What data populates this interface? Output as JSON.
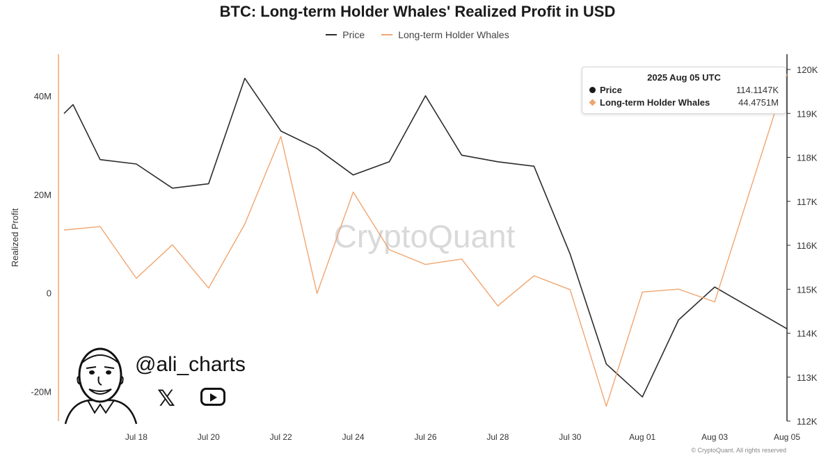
{
  "chart_data": {
    "type": "line",
    "title": "BTC: Long-term Holder Whales' Realized Profit in USD",
    "ylabel": "Realized Profit",
    "y2label": "",
    "xlabel": "",
    "watermark": "CryptoQuant",
    "x": [
      "2025-07-16",
      "2025-07-17",
      "2025-07-18",
      "2025-07-19",
      "2025-07-20",
      "2025-07-21",
      "2025-07-22",
      "2025-07-23",
      "2025-07-24",
      "2025-07-25",
      "2025-07-26",
      "2025-07-27",
      "2025-07-28",
      "2025-07-29",
      "2025-07-30",
      "2025-07-31",
      "2025-08-01",
      "2025-08-02",
      "2025-08-03",
      "2025-08-04",
      "2025-08-05"
    ],
    "x_tick_labels": [
      "Jul 18",
      "Jul 20",
      "Jul 22",
      "Jul 24",
      "Jul 26",
      "Jul 28",
      "Jul 30",
      "Aug 01",
      "Aug 03",
      "Aug 05"
    ],
    "x_tick_dates": [
      "2025-07-18",
      "2025-07-20",
      "2025-07-22",
      "2025-07-24",
      "2025-07-26",
      "2025-07-28",
      "2025-07-30",
      "2025-08-01",
      "2025-08-03",
      "2025-08-05"
    ],
    "left_axis": {
      "ticks": [
        40000000,
        20000000,
        0,
        -20000000
      ],
      "tick_labels": [
        "40M",
        "20M",
        "0",
        "-20M"
      ],
      "range": [
        -26000000,
        48500000
      ]
    },
    "right_axis": {
      "ticks": [
        120000,
        119000,
        118000,
        117000,
        116000,
        115000,
        114000,
        113000,
        112000
      ],
      "tick_labels": [
        "120K",
        "119K",
        "118K",
        "117K",
        "116K",
        "115K",
        "114K",
        "113K",
        "112K"
      ],
      "range": [
        112000,
        120000
      ]
    },
    "series": [
      {
        "name": "Price",
        "axis": "right",
        "color": "#2b2b2b",
        "points": [
          [
            "2025-07-16",
            119000
          ],
          [
            "2025-07-16T06:00",
            119200
          ],
          [
            "2025-07-17",
            117950
          ],
          [
            "2025-07-18",
            117850
          ],
          [
            "2025-07-19",
            117300
          ],
          [
            "2025-07-20",
            117400
          ],
          [
            "2025-07-21",
            119800
          ],
          [
            "2025-07-22",
            118600
          ],
          [
            "2025-07-23",
            118200
          ],
          [
            "2025-07-24",
            117600
          ],
          [
            "2025-07-25",
            117900
          ],
          [
            "2025-07-26",
            119400
          ],
          [
            "2025-07-27",
            118050
          ],
          [
            "2025-07-28",
            117900
          ],
          [
            "2025-07-29",
            117800
          ],
          [
            "2025-07-30",
            115800
          ],
          [
            "2025-07-31",
            113300
          ],
          [
            "2025-08-01",
            112550
          ],
          [
            "2025-08-02",
            114300
          ],
          [
            "2025-08-03",
            115050
          ],
          [
            "2025-08-05",
            114100
          ]
        ]
      },
      {
        "name": "Long-term Holder Whales",
        "axis": "left",
        "color": "#f0a56f",
        "points": [
          [
            "2025-07-16",
            12800000
          ],
          [
            "2025-07-17",
            13500000
          ],
          [
            "2025-07-18",
            3000000
          ],
          [
            "2025-07-19",
            9800000
          ],
          [
            "2025-07-20",
            1000000
          ],
          [
            "2025-07-21",
            14000000
          ],
          [
            "2025-07-22",
            31800000
          ],
          [
            "2025-07-23",
            -100000
          ],
          [
            "2025-07-24",
            20500000
          ],
          [
            "2025-07-25",
            8800000
          ],
          [
            "2025-07-26",
            5800000
          ],
          [
            "2025-07-27",
            6900000
          ],
          [
            "2025-07-28",
            -2600000
          ],
          [
            "2025-07-29",
            3500000
          ],
          [
            "2025-07-30",
            700000
          ],
          [
            "2025-07-31",
            -23000000
          ],
          [
            "2025-08-01",
            200000
          ],
          [
            "2025-08-02",
            800000
          ],
          [
            "2025-08-03",
            -1800000
          ],
          [
            "2025-08-05",
            44475100
          ]
        ]
      }
    ],
    "tooltip": {
      "date": "2025 Aug 05 UTC",
      "rows": [
        {
          "name": "Price",
          "value": "114.1147K",
          "color": "#1a1a1a"
        },
        {
          "name": "Long-term Holder Whales",
          "value": "44.4751M",
          "color": "#f0a56f"
        }
      ]
    },
    "grid": false,
    "legend_position": "top-center"
  },
  "branding": {
    "handle": "@ali_charts",
    "x_logo": "𝕏",
    "copyright": "© CryptoQuant. All rights reserved"
  }
}
